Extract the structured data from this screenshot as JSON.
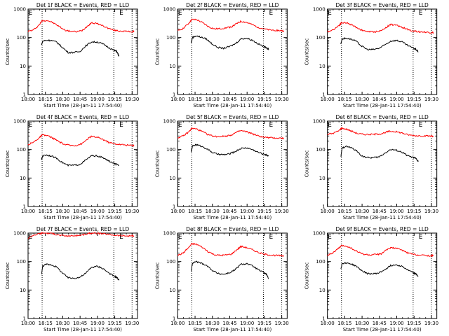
{
  "figure": {
    "layout": "3x3 grid of light-curve plots",
    "shared": {
      "xlabel": "Start Time (28-Jan-11 17:54:40)",
      "ylabel": "Counts/sec",
      "x_ticks": [
        "18:00",
        "18:15",
        "18:30",
        "18:45",
        "19:00",
        "19:15",
        "19:30"
      ],
      "y_ticks": [
        "1",
        "10",
        "100",
        "1000"
      ],
      "marker_label": "E",
      "colors": {
        "events": "#000000",
        "lld": "#ff0000",
        "frame": "#000000"
      }
    }
  },
  "chart_data": [
    {
      "type": "line",
      "title": "Det 1f BLACK = Events, RED = LLD",
      "xlabel": "Start Time (28-Jan-11 17:54:40)",
      "ylabel": "Counts/sec",
      "x_unit": "minutes after 17:54:40",
      "xlim": [
        5.33,
        100
      ],
      "ylim": [
        1,
        1000
      ],
      "yscale": "log",
      "vlines_dotted": [
        17.5,
        79.5,
        95.3
      ],
      "E_markers": [
        5.33,
        84
      ],
      "series": [
        {
          "name": "LLD",
          "color": "#ff0000",
          "x": [
            5.3,
            10,
            15,
            17.5,
            22,
            27,
            32,
            37,
            42,
            47,
            52,
            57,
            60,
            65,
            70,
            75,
            80,
            85,
            90,
            95,
            97
          ],
          "y": [
            165,
            185,
            280,
            390,
            400,
            330,
            250,
            185,
            165,
            160,
            175,
            260,
            330,
            310,
            260,
            210,
            180,
            170,
            165,
            160,
            160
          ]
        },
        {
          "name": "Events",
          "color": "#000000",
          "x": [
            17,
            18,
            21,
            25,
            30,
            35,
            40,
            45,
            50,
            55,
            60,
            65,
            70,
            75,
            80,
            82,
            84
          ],
          "y": [
            55,
            75,
            80,
            80,
            70,
            45,
            30,
            30,
            32,
            50,
            70,
            70,
            60,
            45,
            35,
            33,
            22
          ]
        }
      ]
    },
    {
      "type": "line",
      "title": "Det 2f BLACK = Events, RED = LLD",
      "xlabel": "Start Time (28-Jan-11 17:54:40)",
      "ylabel": "Counts/sec",
      "x_unit": "minutes after 17:54:40",
      "xlim": [
        5.33,
        100
      ],
      "ylim": [
        1,
        1000
      ],
      "yscale": "log",
      "vlines_dotted": [
        17.5,
        79.5,
        95.3
      ],
      "E_markers": [
        5.33,
        84
      ],
      "series": [
        {
          "name": "LLD",
          "color": "#ff0000",
          "x": [
            5.3,
            10,
            15,
            17.5,
            22,
            27,
            32,
            37,
            42,
            47,
            52,
            57,
            60,
            65,
            70,
            75,
            80,
            85,
            90,
            95,
            97
          ],
          "y": [
            170,
            210,
            320,
            430,
            420,
            330,
            240,
            200,
            205,
            220,
            240,
            320,
            370,
            340,
            280,
            230,
            200,
            185,
            180,
            175,
            170
          ]
        },
        {
          "name": "Events",
          "color": "#000000",
          "x": [
            17,
            18,
            21,
            25,
            30,
            35,
            40,
            45,
            50,
            55,
            60,
            65,
            70,
            75,
            80,
            82,
            84
          ],
          "y": [
            65,
            100,
            115,
            105,
            90,
            60,
            45,
            42,
            48,
            60,
            90,
            95,
            80,
            60,
            48,
            45,
            38
          ]
        }
      ]
    },
    {
      "type": "line",
      "title": "Det 3f BLACK = Events, RED = LLD",
      "xlabel": "Start Time (28-Jan-11 17:54:40)",
      "ylabel": "Counts/sec",
      "x_unit": "minutes after 17:54:40",
      "xlim": [
        5.33,
        100
      ],
      "ylim": [
        1,
        1000
      ],
      "yscale": "log",
      "vlines_dotted": [
        17.5,
        79.5,
        95.3
      ],
      "E_markers": [
        5.33,
        84
      ],
      "series": [
        {
          "name": "LLD",
          "color": "#ff0000",
          "x": [
            5.3,
            10,
            15,
            17.5,
            22,
            27,
            32,
            37,
            42,
            47,
            52,
            57,
            60,
            65,
            70,
            75,
            80,
            85,
            90,
            95,
            97
          ],
          "y": [
            160,
            185,
            260,
            330,
            330,
            270,
            210,
            170,
            160,
            160,
            175,
            240,
            290,
            270,
            230,
            190,
            170,
            160,
            155,
            150,
            150
          ]
        },
        {
          "name": "Events",
          "color": "#000000",
          "x": [
            17,
            18,
            21,
            25,
            30,
            35,
            40,
            45,
            50,
            55,
            60,
            65,
            70,
            75,
            80,
            82,
            84
          ],
          "y": [
            60,
            90,
            95,
            90,
            75,
            50,
            38,
            38,
            42,
            55,
            75,
            80,
            70,
            52,
            42,
            38,
            32
          ]
        }
      ]
    },
    {
      "type": "line",
      "title": "Det 4f BLACK = Events, RED = LLD",
      "xlabel": "Start Time (28-Jan-11 17:54:40)",
      "ylabel": "Counts/sec",
      "x_unit": "minutes after 17:54:40",
      "xlim": [
        5.33,
        100
      ],
      "ylim": [
        1,
        1000
      ],
      "yscale": "log",
      "vlines_dotted": [
        17.5,
        79.5,
        95.3
      ],
      "E_markers": [
        5.33,
        84
      ],
      "series": [
        {
          "name": "LLD",
          "color": "#ff0000",
          "x": [
            5.3,
            10,
            15,
            17.5,
            22,
            27,
            32,
            37,
            42,
            47,
            52,
            57,
            60,
            65,
            70,
            75,
            80,
            85,
            90,
            95,
            97
          ],
          "y": [
            150,
            180,
            260,
            320,
            310,
            250,
            190,
            150,
            140,
            140,
            160,
            240,
            290,
            270,
            230,
            180,
            160,
            150,
            145,
            140,
            140
          ]
        },
        {
          "name": "Events",
          "color": "#000000",
          "x": [
            17,
            18,
            21,
            25,
            30,
            35,
            40,
            45,
            50,
            55,
            60,
            65,
            70,
            75,
            80,
            82,
            84
          ],
          "y": [
            45,
            60,
            65,
            60,
            50,
            35,
            28,
            28,
            30,
            42,
            60,
            60,
            52,
            40,
            32,
            30,
            28
          ]
        }
      ]
    },
    {
      "type": "line",
      "title": "Det 5f BLACK = Events, RED = LLD",
      "xlabel": "Start Time (28-Jan-11 17:54:40)",
      "ylabel": "Counts/sec",
      "x_unit": "minutes after 17:54:40",
      "xlim": [
        5.33,
        100
      ],
      "ylim": [
        1,
        1000
      ],
      "yscale": "log",
      "vlines_dotted": [
        17.5,
        79.5,
        95.3
      ],
      "E_markers": [
        5.33,
        84
      ],
      "series": [
        {
          "name": "LLD",
          "color": "#ff0000",
          "x": [
            5.3,
            10,
            15,
            17.5,
            22,
            27,
            32,
            37,
            42,
            47,
            52,
            57,
            60,
            65,
            70,
            75,
            80,
            85,
            90,
            95,
            97
          ],
          "y": [
            260,
            300,
            420,
            560,
            520,
            420,
            330,
            290,
            285,
            300,
            330,
            420,
            460,
            420,
            360,
            300,
            270,
            260,
            255,
            250,
            250
          ]
        },
        {
          "name": "Events",
          "color": "#000000",
          "x": [
            17,
            18,
            21,
            25,
            30,
            35,
            40,
            45,
            50,
            55,
            60,
            65,
            70,
            75,
            80,
            82,
            84
          ],
          "y": [
            85,
            130,
            150,
            135,
            110,
            80,
            68,
            66,
            70,
            85,
            110,
            115,
            100,
            80,
            68,
            65,
            60
          ]
        }
      ]
    },
    {
      "type": "line",
      "title": "Det 6f BLACK = Events, RED = LLD",
      "xlabel": "Start Time (28-Jan-11 17:54:40)",
      "ylabel": "Counts/sec",
      "x_unit": "minutes after 17:54:40",
      "xlim": [
        5.33,
        100
      ],
      "ylim": [
        1,
        1000
      ],
      "yscale": "log",
      "vlines_dotted": [
        17.5,
        79.5,
        95.3
      ],
      "E_markers": [
        5.33,
        84
      ],
      "series": [
        {
          "name": "LLD",
          "color": "#ff0000",
          "x": [
            5.3,
            10,
            15,
            17.5,
            22,
            27,
            32,
            37,
            42,
            47,
            52,
            57,
            60,
            65,
            70,
            75,
            80,
            85,
            90,
            95,
            97
          ],
          "y": [
            340,
            370,
            450,
            560,
            520,
            430,
            360,
            340,
            340,
            345,
            360,
            420,
            440,
            420,
            380,
            330,
            310,
            305,
            300,
            300,
            300
          ]
        },
        {
          "name": "Events",
          "color": "#000000",
          "x": [
            17,
            18,
            21,
            25,
            30,
            35,
            40,
            45,
            50,
            55,
            60,
            65,
            70,
            75,
            80,
            82,
            84
          ],
          "y": [
            55,
            110,
            130,
            120,
            95,
            60,
            52,
            52,
            55,
            75,
            100,
            95,
            80,
            60,
            52,
            48,
            38
          ]
        }
      ]
    },
    {
      "type": "line",
      "title": "Det 7f BLACK = Events, RED = LLD",
      "xlabel": "Start Time (28-Jan-11 17:54:40)",
      "ylabel": "Counts/sec",
      "x_unit": "minutes after 17:54:40",
      "xlim": [
        5.33,
        100
      ],
      "ylim": [
        1,
        1000
      ],
      "yscale": "log",
      "vlines_dotted": [
        17.5,
        79.5,
        95.3
      ],
      "E_markers": [
        5.33,
        84
      ],
      "series": [
        {
          "name": "LLD",
          "color": "#ff0000",
          "x": [
            5.3,
            10,
            15,
            17.5,
            22,
            27,
            32,
            37,
            42,
            47,
            52,
            57,
            60,
            65,
            70,
            75,
            80,
            85,
            90,
            95,
            97
          ],
          "y": [
            650,
            850,
            950,
            1000,
            1000,
            950,
            850,
            800,
            800,
            820,
            860,
            950,
            1000,
            980,
            950,
            900,
            850,
            820,
            800,
            800,
            780
          ]
        },
        {
          "name": "Events",
          "color": "#000000",
          "x": [
            17,
            18,
            21,
            25,
            30,
            35,
            40,
            45,
            50,
            55,
            60,
            65,
            70,
            75,
            80,
            82,
            84
          ],
          "y": [
            35,
            70,
            80,
            78,
            65,
            40,
            27,
            26,
            28,
            38,
            62,
            68,
            58,
            40,
            30,
            28,
            22
          ]
        }
      ]
    },
    {
      "type": "line",
      "title": "Det 8f BLACK = Events, RED = LLD",
      "xlabel": "Start Time (28-Jan-11 17:54:40)",
      "ylabel": "Counts/sec",
      "x_unit": "minutes after 17:54:40",
      "xlim": [
        5.33,
        100
      ],
      "ylim": [
        1,
        1000
      ],
      "yscale": "log",
      "vlines_dotted": [
        17.5,
        79.5,
        95.3
      ],
      "E_markers": [
        5.33,
        84
      ],
      "series": [
        {
          "name": "LLD",
          "color": "#ff0000",
          "x": [
            5.3,
            10,
            15,
            17.5,
            22,
            27,
            32,
            37,
            42,
            47,
            52,
            57,
            60,
            65,
            70,
            75,
            80,
            85,
            90,
            95,
            97
          ],
          "y": [
            165,
            200,
            320,
            420,
            400,
            310,
            220,
            175,
            165,
            170,
            185,
            270,
            340,
            310,
            260,
            210,
            180,
            170,
            165,
            160,
            160
          ]
        },
        {
          "name": "Events",
          "color": "#000000",
          "x": [
            17,
            18,
            21,
            25,
            30,
            35,
            40,
            45,
            50,
            55,
            60,
            65,
            70,
            75,
            80,
            82,
            84
          ],
          "y": [
            45,
            85,
            100,
            90,
            75,
            50,
            38,
            36,
            40,
            52,
            80,
            85,
            70,
            52,
            40,
            36,
            25
          ]
        }
      ]
    },
    {
      "type": "line",
      "title": "Det 9f BLACK = Events, RED = LLD",
      "xlabel": "Start Time (28-Jan-11 17:54:40)",
      "ylabel": "Counts/sec",
      "x_unit": "minutes after 17:54:40",
      "xlim": [
        5.33,
        100
      ],
      "ylim": [
        1,
        1000
      ],
      "yscale": "log",
      "vlines_dotted": [
        17.5,
        79.5,
        95.3
      ],
      "E_markers": [
        5.33,
        84
      ],
      "series": [
        {
          "name": "LLD",
          "color": "#ff0000",
          "x": [
            5.3,
            10,
            15,
            17.5,
            22,
            27,
            32,
            37,
            42,
            47,
            52,
            57,
            60,
            65,
            70,
            75,
            80,
            85,
            90,
            95,
            97
          ],
          "y": [
            170,
            200,
            290,
            360,
            350,
            280,
            215,
            180,
            170,
            175,
            190,
            260,
            310,
            290,
            250,
            200,
            180,
            170,
            165,
            160,
            160
          ]
        },
        {
          "name": "Events",
          "color": "#000000",
          "x": [
            17,
            18,
            21,
            25,
            30,
            35,
            40,
            45,
            50,
            55,
            60,
            65,
            70,
            75,
            80,
            82,
            84
          ],
          "y": [
            55,
            85,
            90,
            85,
            70,
            48,
            38,
            37,
            40,
            52,
            72,
            78,
            68,
            50,
            40,
            36,
            30
          ]
        }
      ]
    }
  ]
}
